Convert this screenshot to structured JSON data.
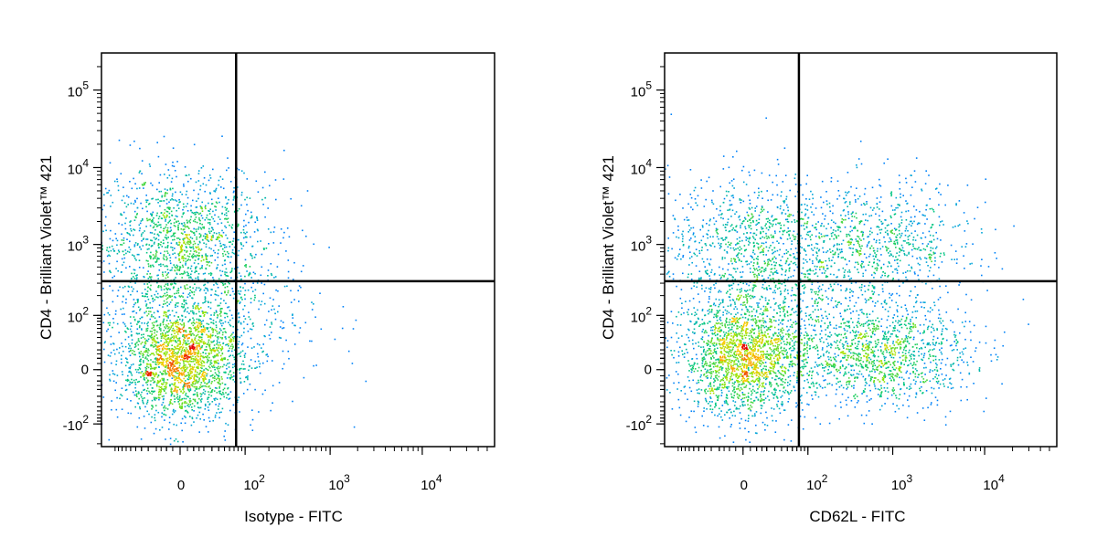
{
  "chart_data": [
    {
      "type": "scatter",
      "id": "left",
      "xlabel": "Isotype - FITC",
      "ylabel": "CD4 - Brilliant Violet™ 421",
      "x_scale": "biexponential",
      "y_scale": "biexponential",
      "xlim": [
        -150,
        60000
      ],
      "ylim": [
        -220,
        300000
      ],
      "x_ticks": [
        {
          "value": 0,
          "label": "0"
        },
        {
          "value": 100,
          "label": "10^2"
        },
        {
          "value": 1000,
          "label": "10^3"
        },
        {
          "value": 10000,
          "label": "10^4"
        }
      ],
      "y_ticks": [
        {
          "value": -100,
          "label": "-10^2"
        },
        {
          "value": 0,
          "label": "0"
        },
        {
          "value": 100,
          "label": "10^2"
        },
        {
          "value": 1000,
          "label": "10^3"
        },
        {
          "value": 10000,
          "label": "10^4"
        },
        {
          "value": 100000,
          "label": "10^5"
        }
      ],
      "gates": {
        "x": 75,
        "y": 320
      },
      "color_scale": "density (blue-cyan-green-yellow-red)",
      "populations": [
        {
          "x": 0,
          "y": 1200,
          "sx": 55,
          "sy": 55,
          "n": 1100
        },
        {
          "x": 0,
          "y": 8,
          "sx": 40,
          "sy": 45,
          "n": 1900
        },
        {
          "x": 10,
          "y": 150,
          "sx": 75,
          "sy": 90,
          "n": 900
        }
      ]
    },
    {
      "type": "scatter",
      "id": "right",
      "xlabel": "CD62L - FITC",
      "ylabel": "CD4 - Brilliant Violet™ 421",
      "x_scale": "biexponential",
      "y_scale": "biexponential",
      "xlim": [
        -150,
        60000
      ],
      "ylim": [
        -220,
        300000
      ],
      "x_ticks": [
        {
          "value": 0,
          "label": "0"
        },
        {
          "value": 100,
          "label": "10^2"
        },
        {
          "value": 1000,
          "label": "10^3"
        },
        {
          "value": 10000,
          "label": "10^4"
        }
      ],
      "y_ticks": [
        {
          "value": -100,
          "label": "-10^2"
        },
        {
          "value": 0,
          "label": "0"
        },
        {
          "value": 100,
          "label": "10^2"
        },
        {
          "value": 1000,
          "label": "10^3"
        },
        {
          "value": 10000,
          "label": "10^4"
        },
        {
          "value": 100000,
          "label": "10^5"
        }
      ],
      "gates": {
        "x": 75,
        "y": 320
      },
      "color_scale": "density (blue-cyan-green-yellow-red)",
      "populations": [
        {
          "x": 5,
          "y": 1100,
          "sx": 55,
          "sy": 55,
          "n": 700
        },
        {
          "x": 700,
          "y": 1000,
          "sx": 60,
          "sy": 50,
          "n": 800
        },
        {
          "x": 0,
          "y": 10,
          "sx": 40,
          "sy": 45,
          "n": 1700
        },
        {
          "x": 700,
          "y": 15,
          "sx": 60,
          "sy": 40,
          "n": 1200
        },
        {
          "x": 30,
          "y": 150,
          "sx": 70,
          "sy": 85,
          "n": 800
        }
      ]
    }
  ]
}
